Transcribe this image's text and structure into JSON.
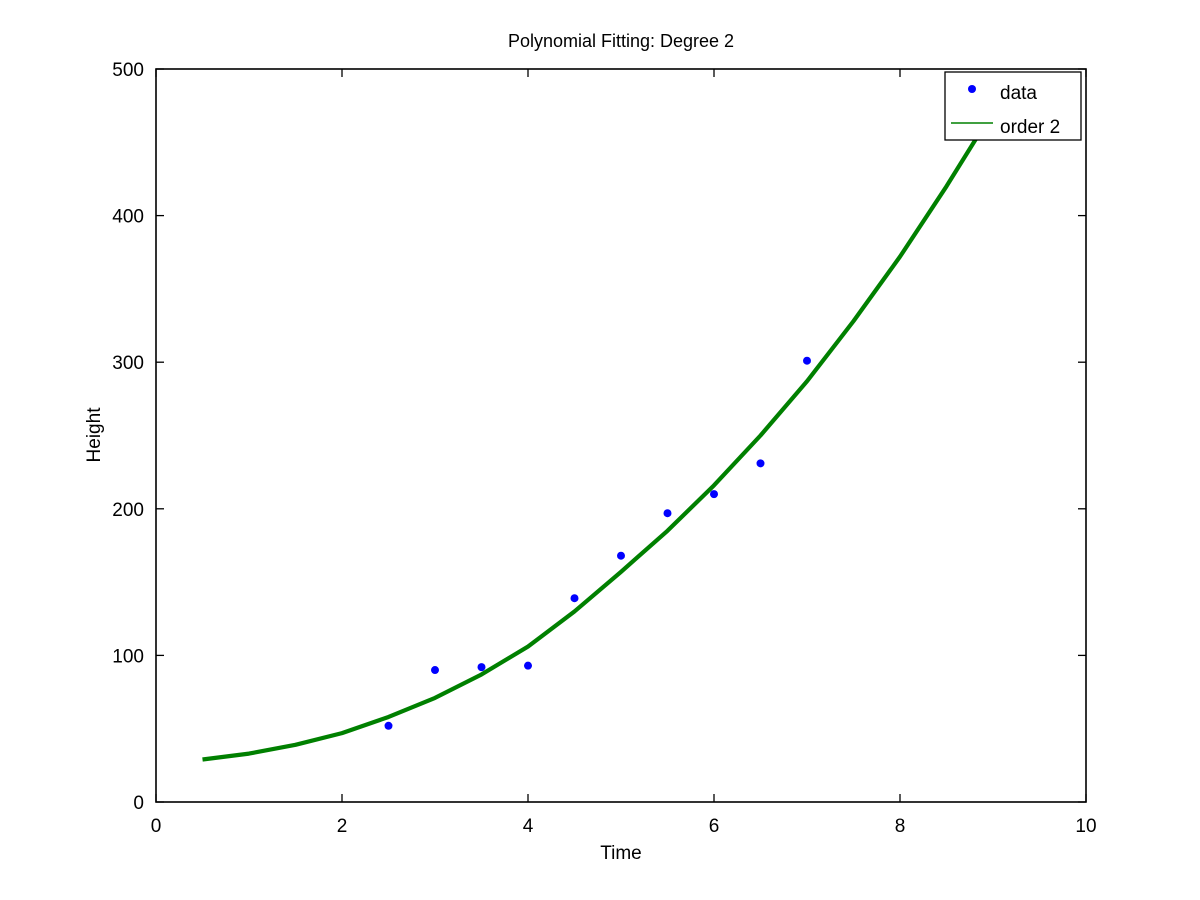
{
  "chart_data": {
    "type": "scatter",
    "title": "Polynomial Fitting: Degree 2",
    "xlabel": "Time",
    "ylabel": "Height",
    "xlim": [
      0,
      10
    ],
    "ylim": [
      0,
      500
    ],
    "xticks": [
      0,
      2,
      4,
      6,
      8,
      10
    ],
    "yticks": [
      0,
      100,
      200,
      300,
      400,
      500
    ],
    "xtick_labels": [
      "0",
      "2",
      "4",
      "6",
      "8",
      "10"
    ],
    "ytick_labels": [
      "0",
      "100",
      "200",
      "300",
      "400",
      "500"
    ],
    "grid": false,
    "legend_position": "top-right",
    "series": [
      {
        "name": "data",
        "kind": "points",
        "color": "#0000ff",
        "points": [
          {
            "x": 2.5,
            "y": 52
          },
          {
            "x": 3.0,
            "y": 90
          },
          {
            "x": 3.5,
            "y": 92
          },
          {
            "x": 4.0,
            "y": 93
          },
          {
            "x": 4.5,
            "y": 139
          },
          {
            "x": 5.0,
            "y": 168
          },
          {
            "x": 5.5,
            "y": 197
          },
          {
            "x": 6.0,
            "y": 210
          },
          {
            "x": 6.5,
            "y": 231
          },
          {
            "x": 7.0,
            "y": 301
          }
        ]
      },
      {
        "name": "order 2",
        "kind": "line",
        "color": "#008000",
        "points": [
          {
            "x": 0.5,
            "y": 29
          },
          {
            "x": 1.0,
            "y": 33
          },
          {
            "x": 1.5,
            "y": 39
          },
          {
            "x": 2.0,
            "y": 47
          },
          {
            "x": 2.5,
            "y": 58
          },
          {
            "x": 3.0,
            "y": 71
          },
          {
            "x": 3.5,
            "y": 87
          },
          {
            "x": 4.0,
            "y": 106
          },
          {
            "x": 4.5,
            "y": 130
          },
          {
            "x": 5.0,
            "y": 157
          },
          {
            "x": 5.5,
            "y": 185
          },
          {
            "x": 6.0,
            "y": 216
          },
          {
            "x": 6.5,
            "y": 250
          },
          {
            "x": 7.0,
            "y": 287
          },
          {
            "x": 7.5,
            "y": 328
          },
          {
            "x": 8.0,
            "y": 372
          },
          {
            "x": 8.5,
            "y": 420
          },
          {
            "x": 9.0,
            "y": 471
          },
          {
            "x": 9.2,
            "y": 492
          }
        ]
      }
    ]
  }
}
